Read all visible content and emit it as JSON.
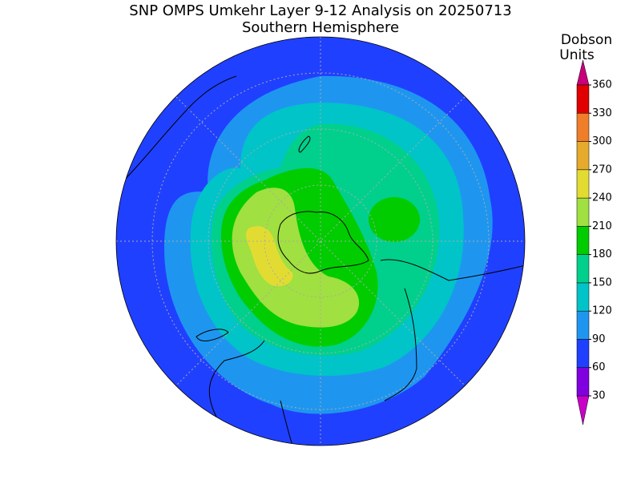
{
  "header": {
    "title": "SNP OMPS Umkehr Layer 9-12 Analysis on 20250713",
    "subtitle": "Southern Hemisphere"
  },
  "colorbar": {
    "label_lines": [
      "Dobson",
      "Units"
    ],
    "ticks": [
      30,
      60,
      90,
      120,
      150,
      180,
      210,
      240,
      270,
      300,
      330,
      360
    ],
    "colors": [
      "#c800c8",
      "#8000e0",
      "#2040ff",
      "#1e96f0",
      "#00c4c8",
      "#00d08c",
      "#00cc00",
      "#a0e040",
      "#e2dc32",
      "#e6aa2d",
      "#f07d28",
      "#e00000",
      "#c8007a"
    ]
  }
}
